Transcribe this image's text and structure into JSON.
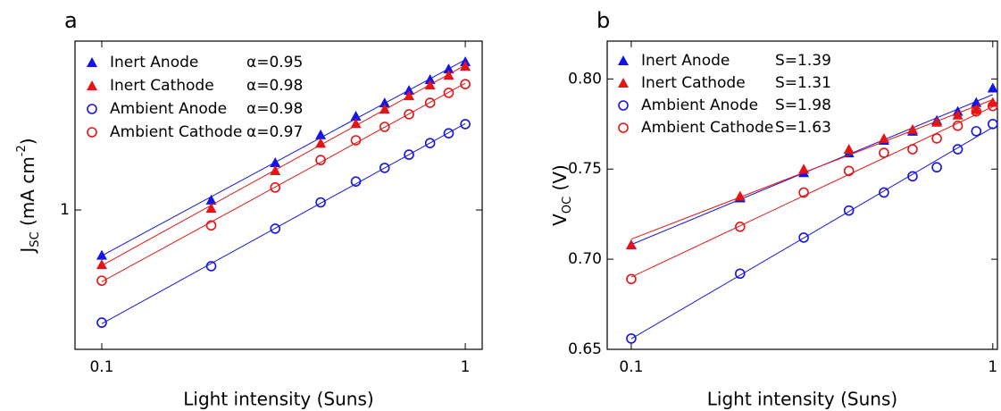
{
  "chart_data": [
    {
      "type": "scatter",
      "panel": "a",
      "xlabel": "Light intensity (Suns)",
      "ylabel": [
        "J",
        "SC",
        " (mA cm",
        "-2",
        ")"
      ],
      "xscale": "log",
      "yscale": "log",
      "xlim": [
        0.0844,
        1.113
      ],
      "ylim": [
        0.207,
        6.75
      ],
      "xticks": [
        0.1,
        1
      ],
      "yticks": [
        1
      ],
      "x": [
        0.1,
        0.2,
        0.3,
        0.4,
        0.5,
        0.6,
        0.7,
        0.8,
        0.9,
        1
      ],
      "series": [
        {
          "name": "Inert Anode",
          "annotation": "α=0.95",
          "color": "#1414e6",
          "marker": "triangle",
          "values": [
            0.6,
            1.12,
            1.71,
            2.34,
            2.89,
            3.36,
            3.87,
            4.37,
            4.93,
            5.35
          ]
        },
        {
          "name": "Inert Cathode",
          "annotation": "α=0.98",
          "color": "#e61414",
          "marker": "triangle",
          "values": [
            0.54,
            1.02,
            1.56,
            2.13,
            2.66,
            3.13,
            3.64,
            4.11,
            4.59,
            5.08
          ]
        },
        {
          "name": "Ambient Anode",
          "annotation": "α=0.98",
          "color": "#1414e6",
          "marker": "circle",
          "values": [
            0.28,
            0.53,
            0.81,
            1.09,
            1.38,
            1.61,
            1.87,
            2.13,
            2.38,
            2.64
          ]
        },
        {
          "name": "Ambient Cathode",
          "annotation": "α=0.97",
          "color": "#e61414",
          "marker": "circle",
          "values": [
            0.45,
            0.84,
            1.29,
            1.76,
            2.2,
            2.56,
            2.95,
            3.36,
            3.76,
            4.15
          ]
        }
      ]
    },
    {
      "type": "scatter",
      "panel": "b",
      "xlabel": "Light intensity (Suns)",
      "ylabel": [
        "V",
        "OC",
        " (V)"
      ],
      "xscale": "log",
      "yscale": "linear",
      "xlim": [
        0.0858,
        1.03
      ],
      "ylim": [
        0.65,
        0.821
      ],
      "xticks": [
        0.1,
        1
      ],
      "yticks": [
        0.65,
        {
          "value": 0.7,
          "label": "0.70"
        },
        0.75,
        {
          "value": 0.8,
          "label": "0.80"
        }
      ],
      "x": [
        0.1,
        0.2,
        0.3,
        0.4,
        0.5,
        0.6,
        0.7,
        0.8,
        0.9,
        1
      ],
      "series": [
        {
          "name": "Inert Anode",
          "annotation": "S=1.39",
          "color": "#1414e6",
          "marker": "triangle",
          "values": [
            0.708,
            0.734,
            0.748,
            0.759,
            0.766,
            0.771,
            0.777,
            0.782,
            0.787,
            0.795
          ]
        },
        {
          "name": "Inert Cathode",
          "annotation": "S=1.31",
          "color": "#e61414",
          "marker": "triangle",
          "values": [
            0.708,
            0.735,
            0.75,
            0.761,
            0.767,
            0.772,
            0.776,
            0.78,
            0.783,
            0.787
          ]
        },
        {
          "name": "Ambient Anode",
          "annotation": "S=1.98",
          "color": "#1414e6",
          "marker": "circle",
          "values": [
            0.656,
            0.692,
            0.712,
            0.727,
            0.737,
            0.746,
            0.751,
            0.761,
            0.771,
            0.775
          ]
        },
        {
          "name": "Ambient Cathode",
          "annotation": "S=1.63",
          "color": "#e61414",
          "marker": "circle",
          "values": [
            0.689,
            0.718,
            0.737,
            0.749,
            0.759,
            0.761,
            0.767,
            0.774,
            0.782,
            0.785
          ]
        }
      ]
    }
  ]
}
